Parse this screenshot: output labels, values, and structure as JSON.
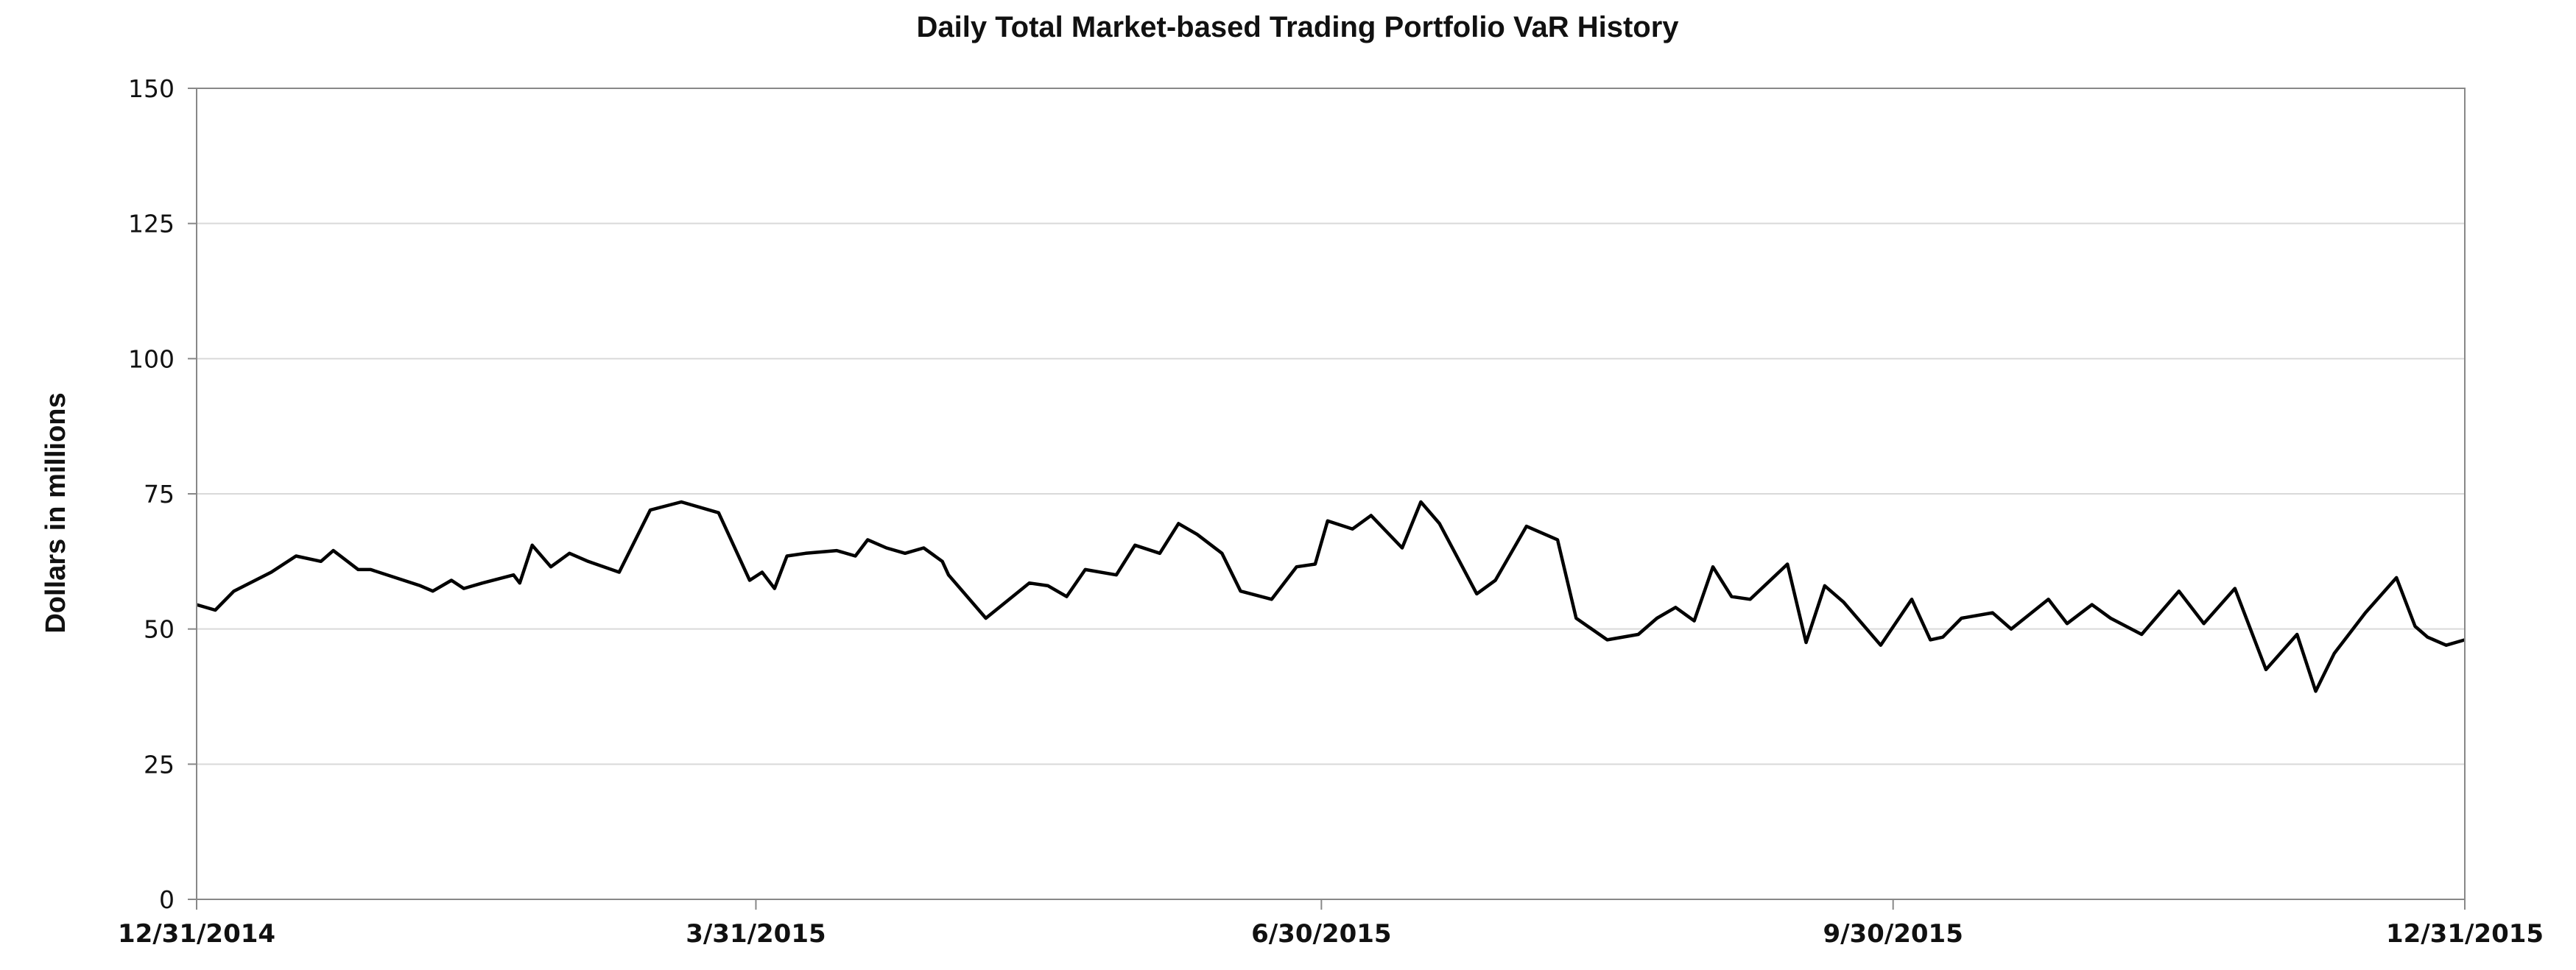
{
  "chart_data": {
    "type": "line",
    "title": "Daily Total Market-based Trading Portfolio VaR History",
    "xlabel": "",
    "ylabel": "Dollars in millions",
    "ylim": [
      0,
      150
    ],
    "y_ticks": [
      "0",
      "25",
      "50",
      "75",
      "100",
      "125",
      "150"
    ],
    "x_ticks": [
      "12/31/2014",
      "3/31/2015",
      "6/30/2015",
      "9/30/2015",
      "12/31/2015"
    ],
    "grid": "horizontal",
    "legend": "none",
    "line_color": "#000000",
    "series": [
      {
        "name": "VaR",
        "x_unit": "days since 12/31/2014",
        "x": [
          0,
          3,
          6,
          12,
          16,
          20,
          22,
          26,
          28,
          36,
          38,
          41,
          43,
          46,
          51,
          52,
          54,
          57,
          60,
          63,
          68,
          73,
          78,
          84,
          89,
          91,
          93,
          95,
          98,
          103,
          106,
          108,
          111,
          114,
          117,
          120,
          121,
          127,
          134,
          137,
          140,
          143,
          148,
          151,
          155,
          158,
          161,
          165,
          168,
          173,
          177,
          180,
          182,
          186,
          189,
          194,
          197,
          200,
          206,
          209,
          214,
          219,
          222,
          227,
          232,
          235,
          238,
          241,
          244,
          247,
          250,
          256,
          259,
          262,
          265,
          271,
          276,
          279,
          281,
          284,
          289,
          292,
          298,
          301,
          305,
          308,
          313,
          319,
          323,
          328,
          333,
          338,
          341,
          344,
          349,
          354,
          357,
          359,
          362,
          365
        ],
        "values": [
          54.5,
          53.5,
          57,
          60.5,
          63.5,
          62.5,
          64.5,
          61,
          61,
          58,
          57,
          59,
          57.5,
          58.5,
          60,
          58.5,
          65.5,
          61.5,
          64,
          62.5,
          60.5,
          72,
          73.5,
          71.5,
          59,
          60.5,
          57.5,
          63.5,
          64,
          64.5,
          63.5,
          66.5,
          65,
          64,
          65,
          62.5,
          60,
          52,
          58.5,
          58,
          56,
          61,
          60,
          65.5,
          64,
          69.5,
          67.5,
          64,
          57,
          55.5,
          61.5,
          62,
          70,
          68.5,
          71,
          65,
          73.5,
          69.5,
          56.5,
          59,
          69,
          66.5,
          52,
          48,
          49,
          52,
          54,
          51.5,
          61.5,
          56,
          55.5,
          62,
          47.5,
          58,
          55,
          47,
          55.5,
          48,
          48.5,
          52,
          53,
          50,
          55.5,
          51,
          54.5,
          52,
          49,
          57,
          51,
          57.5,
          42.5,
          49,
          38.5,
          45.5,
          53,
          59.5,
          50.5,
          48.5,
          47,
          48
        ]
      }
    ]
  }
}
